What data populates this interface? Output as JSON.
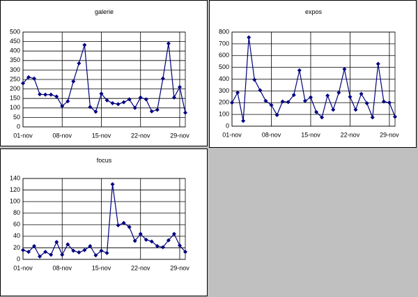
{
  "chart_data": [
    {
      "type": "line",
      "title": "galerie",
      "categories": [
        "01-nov",
        null,
        null,
        null,
        null,
        null,
        null,
        "08-nov",
        null,
        null,
        null,
        null,
        null,
        null,
        "15-nov",
        null,
        null,
        null,
        null,
        null,
        null,
        "22-nov",
        null,
        null,
        null,
        null,
        null,
        null,
        "29-nov",
        null
      ],
      "series": [
        {
          "name": "galerie",
          "color": "#000080",
          "values": [
            230,
            262,
            255,
            172,
            170,
            170,
            160,
            110,
            135,
            240,
            335,
            432,
            105,
            80,
            175,
            140,
            125,
            120,
            130,
            145,
            100,
            155,
            145,
            82,
            90,
            255,
            440,
            155,
            210,
            75
          ]
        }
      ],
      "ylim": [
        0,
        500
      ],
      "yticks": [
        0,
        50,
        100,
        150,
        200,
        250,
        300,
        350,
        400,
        450,
        500
      ],
      "grid": true
    },
    {
      "type": "line",
      "title": "expos",
      "categories": [
        "01-nov",
        null,
        null,
        null,
        null,
        null,
        null,
        "08-nov",
        null,
        null,
        null,
        null,
        null,
        null,
        "15-nov",
        null,
        null,
        null,
        null,
        null,
        null,
        "22-nov",
        null,
        null,
        null,
        null,
        null,
        null,
        "29-nov",
        null
      ],
      "series": [
        {
          "name": "expos",
          "color": "#000080",
          "values": [
            200,
            285,
            45,
            755,
            395,
            305,
            215,
            180,
            95,
            210,
            205,
            265,
            475,
            215,
            245,
            120,
            75,
            260,
            140,
            285,
            485,
            250,
            140,
            275,
            195,
            75,
            530,
            210,
            200,
            80
          ]
        }
      ],
      "ylim": [
        0,
        800
      ],
      "yticks": [
        0,
        100,
        200,
        300,
        400,
        500,
        600,
        700,
        800
      ],
      "grid": true
    },
    {
      "type": "line",
      "title": "focus",
      "categories": [
        "01-nov",
        null,
        null,
        null,
        null,
        null,
        null,
        "08-nov",
        null,
        null,
        null,
        null,
        null,
        null,
        "15-nov",
        null,
        null,
        null,
        null,
        null,
        null,
        "22-nov",
        null,
        null,
        null,
        null,
        null,
        null,
        "29-nov",
        null
      ],
      "series": [
        {
          "name": "focus",
          "color": "#000080",
          "values": [
            16,
            13,
            23,
            5,
            13,
            8,
            30,
            8,
            26,
            15,
            12,
            16,
            23,
            7,
            15,
            11,
            130,
            59,
            63,
            56,
            32,
            44,
            34,
            31,
            23,
            21,
            33,
            44,
            24,
            13
          ]
        }
      ],
      "ylim": [
        0,
        140
      ],
      "yticks": [
        0,
        20,
        40,
        60,
        80,
        100,
        120,
        140
      ],
      "grid": true
    }
  ]
}
